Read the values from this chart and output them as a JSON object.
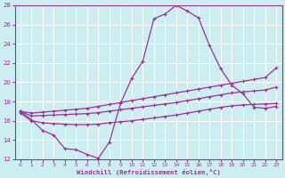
{
  "xlabel": "Windchill (Refroidissement éolien,°C)",
  "bg_color": "#cceef0",
  "grid_color": "#ffffff",
  "line_color": "#993399",
  "xlim": [
    -0.5,
    23.5
  ],
  "ylim": [
    12,
    28
  ],
  "xticks": [
    0,
    1,
    2,
    3,
    4,
    5,
    6,
    7,
    8,
    9,
    10,
    11,
    12,
    13,
    14,
    15,
    16,
    17,
    18,
    19,
    20,
    21,
    22,
    23
  ],
  "yticks": [
    12,
    14,
    16,
    18,
    20,
    22,
    24,
    26,
    28
  ],
  "curve1_x": [
    0,
    1,
    2,
    3,
    4,
    5,
    6,
    7,
    8,
    9,
    10,
    11,
    12,
    13,
    14,
    15,
    16,
    17,
    18,
    19,
    20,
    21,
    22,
    23
  ],
  "curve1_y": [
    17.0,
    16.1,
    15.0,
    14.5,
    13.1,
    13.0,
    12.5,
    12.1,
    13.8,
    17.8,
    20.4,
    22.2,
    26.6,
    27.1,
    28.0,
    27.4,
    26.7,
    23.8,
    21.4,
    19.7,
    18.8,
    17.4,
    17.3,
    17.5
  ],
  "curve2_x": [
    0,
    1,
    2,
    3,
    4,
    5,
    6,
    7,
    8,
    9,
    10,
    11,
    12,
    13,
    14,
    15,
    16,
    17,
    18,
    19,
    20,
    21,
    22,
    23
  ],
  "curve2_y": [
    17.0,
    16.8,
    16.9,
    17.0,
    17.1,
    17.2,
    17.3,
    17.5,
    17.7,
    17.9,
    18.1,
    18.3,
    18.5,
    18.7,
    18.9,
    19.1,
    19.3,
    19.5,
    19.7,
    19.9,
    20.1,
    20.3,
    20.5,
    21.5
  ],
  "curve3_x": [
    0,
    1,
    2,
    3,
    4,
    5,
    6,
    7,
    8,
    9,
    10,
    11,
    12,
    13,
    14,
    15,
    16,
    17,
    18,
    19,
    20,
    21,
    22,
    23
  ],
  "curve3_y": [
    17.0,
    16.5,
    16.55,
    16.6,
    16.65,
    16.7,
    16.75,
    16.85,
    17.0,
    17.15,
    17.3,
    17.45,
    17.6,
    17.75,
    17.9,
    18.1,
    18.3,
    18.5,
    18.7,
    18.9,
    19.0,
    19.1,
    19.2,
    19.5
  ],
  "curve4_x": [
    0,
    1,
    2,
    3,
    4,
    5,
    6,
    7,
    8,
    9,
    10,
    11,
    12,
    13,
    14,
    15,
    16,
    17,
    18,
    19,
    20,
    21,
    22,
    23
  ],
  "curve4_y": [
    16.8,
    16.0,
    15.8,
    15.7,
    15.65,
    15.6,
    15.6,
    15.65,
    15.8,
    15.9,
    16.0,
    16.15,
    16.3,
    16.45,
    16.6,
    16.8,
    17.0,
    17.2,
    17.4,
    17.55,
    17.65,
    17.7,
    17.75,
    17.8
  ]
}
